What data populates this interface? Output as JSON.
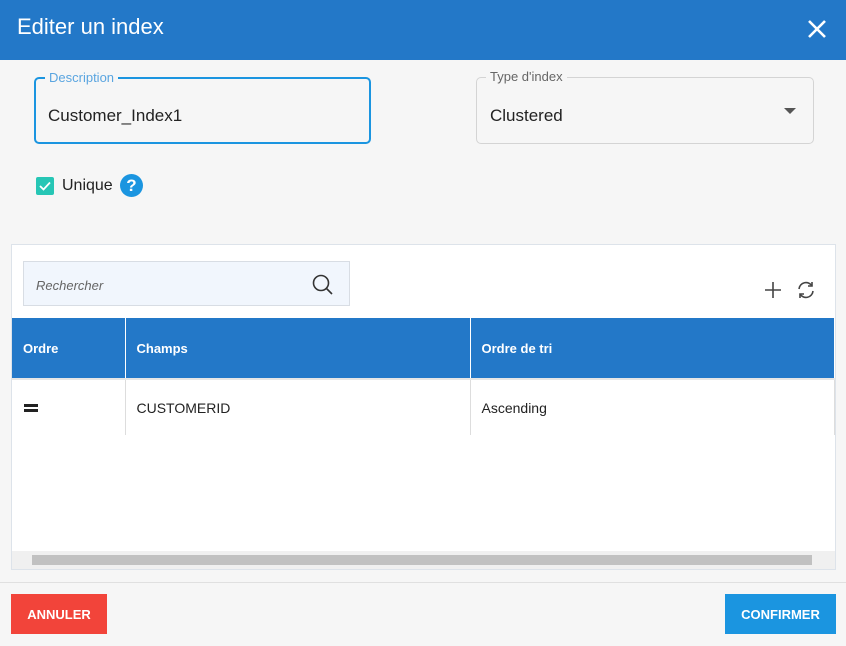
{
  "dialog": {
    "title": "Editer un index",
    "close_icon": "close-icon"
  },
  "form": {
    "description_label": "Description",
    "description_value": "Customer_Index1",
    "type_label": "Type d'index",
    "type_value": "Clustered",
    "unique_label": "Unique",
    "unique_checked": true
  },
  "grid": {
    "search_placeholder": "Rechercher",
    "columns": [
      "Ordre",
      "Champs",
      "Ordre de tri"
    ],
    "rows": [
      {
        "order": "drag-handle-icon",
        "field": "CUSTOMERID",
        "sort": "Ascending"
      }
    ]
  },
  "footer": {
    "cancel": "ANNULER",
    "confirm": "CONFIRMER"
  },
  "colors": {
    "header": "#2378c8",
    "accent": "#1b95e0",
    "cancel": "#f2443a",
    "checkbox": "#26c6b5"
  }
}
